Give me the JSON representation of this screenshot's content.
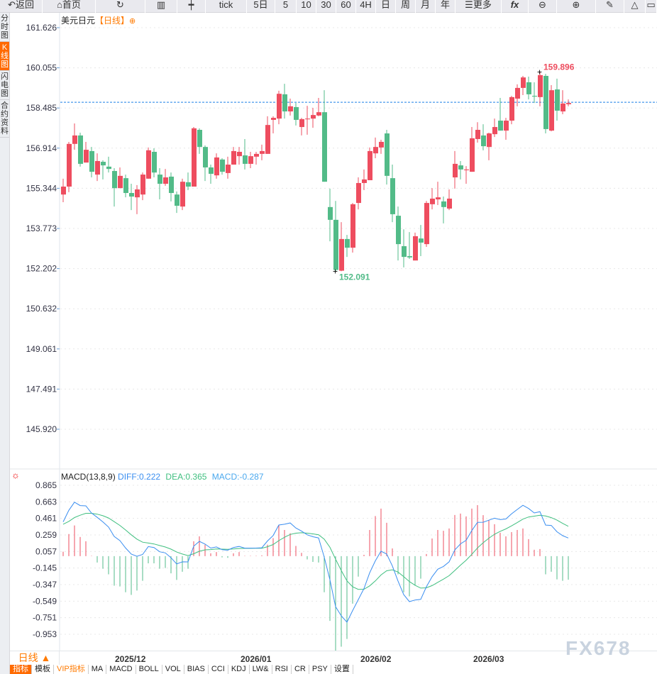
{
  "toolbar": {
    "items": [
      "返回",
      "首页",
      "",
      "",
      "",
      "tick",
      "5日",
      "5",
      "10",
      "30",
      "60",
      "4H",
      "日",
      "周",
      "月",
      "年",
      "更多",
      "fx",
      "",
      "",
      "",
      "",
      ""
    ]
  },
  "left_tabs": [
    {
      "label": "分时图",
      "active": false
    },
    {
      "label": "K线图",
      "active": true
    },
    {
      "label": "闪电图",
      "active": false
    },
    {
      "label": "合约资料",
      "active": false
    }
  ],
  "title": {
    "symbol": "美元日元",
    "period": "【日线】",
    "icon": "crosshair-circle-icon"
  },
  "macd_legend": {
    "name": "MACD(13,8,9)",
    "diff": "DIFF:0.222",
    "dea": "DEA:0.365",
    "macd": "MACD:-0.287"
  },
  "period_button": "日线 ▲",
  "bottom_tabs": [
    "指标",
    "模板",
    "VIP指标",
    "MA",
    "MACD",
    "BOLL",
    "VOL",
    "BIAS",
    "CCI",
    "KDJ",
    "LW&",
    "RSI",
    "CR",
    "PSY",
    "设置"
  ],
  "watermark": "FX678",
  "colors": {
    "up": "#ee4d5f",
    "down": "#52bb88",
    "diff": "#3a8ef0",
    "dea": "#3fbf7f",
    "accent": "#ff6a00",
    "current_line": "#1a7fe8"
  },
  "chart_data": [
    {
      "type": "candlestick",
      "y_ticks": [
        "161.626",
        "160.055",
        "158.485",
        "156.914",
        "155.344",
        "153.773",
        "152.202",
        "150.632",
        "149.061",
        "147.491",
        "145.920"
      ],
      "ylim": [
        145.92,
        161.626
      ],
      "x_ticks": [
        "2025/12",
        "2026/01",
        "2026/02",
        "2026/03"
      ],
      "current_price_line": 158.71,
      "high_label": "159.896",
      "low_label": "152.091",
      "ohlc": [
        [
          155.1,
          155.72,
          154.8,
          155.41
        ],
        [
          155.41,
          157.16,
          155.19,
          157.08
        ],
        [
          157.08,
          157.88,
          156.85,
          157.41
        ],
        [
          157.41,
          157.52,
          156.19,
          156.3
        ],
        [
          156.35,
          157.16,
          156.35,
          156.85
        ],
        [
          156.8,
          156.96,
          155.77,
          155.99
        ],
        [
          155.88,
          156.71,
          155.63,
          156.41
        ],
        [
          156.38,
          156.44,
          155.69,
          156.24
        ],
        [
          156.19,
          156.58,
          155.96,
          156.1
        ],
        [
          156.02,
          156.13,
          154.63,
          155.35
        ],
        [
          155.35,
          156.16,
          155.35,
          155.83
        ],
        [
          155.74,
          155.88,
          154.99,
          155.16
        ],
        [
          155.16,
          155.52,
          154.49,
          155.02
        ],
        [
          154.99,
          155.47,
          154.33,
          155.3
        ],
        [
          155.1,
          155.96,
          154.88,
          155.88
        ],
        [
          155.72,
          156.94,
          155.72,
          156.83
        ],
        [
          156.77,
          156.91,
          155.77,
          155.96
        ],
        [
          155.88,
          156.13,
          154.91,
          155.52
        ],
        [
          155.52,
          156.1,
          155.44,
          155.77
        ],
        [
          155.8,
          155.96,
          154.83,
          155.16
        ],
        [
          155.1,
          155.22,
          154.38,
          154.66
        ],
        [
          154.63,
          155.72,
          154.49,
          155.6
        ],
        [
          155.58,
          155.96,
          155.27,
          155.41
        ],
        [
          155.41,
          157.74,
          155.41,
          157.69
        ],
        [
          157.63,
          157.69,
          156.69,
          156.96
        ],
        [
          156.96,
          157.02,
          155.63,
          156.16
        ],
        [
          156.16,
          156.27,
          155.52,
          155.91
        ],
        [
          155.85,
          156.71,
          155.72,
          156.55
        ],
        [
          156.47,
          156.52,
          155.88,
          155.99
        ],
        [
          155.94,
          156.58,
          155.72,
          156.27
        ],
        [
          156.27,
          156.96,
          156.27,
          156.8
        ],
        [
          156.6,
          156.96,
          156.27,
          156.77
        ],
        [
          156.63,
          157.27,
          156.08,
          156.3
        ],
        [
          156.3,
          156.77,
          156.13,
          156.6
        ],
        [
          156.58,
          156.77,
          156.27,
          156.69
        ],
        [
          156.69,
          157.05,
          156.44,
          156.8
        ],
        [
          156.69,
          158.16,
          156.69,
          157.82
        ],
        [
          158.02,
          158.16,
          157.49,
          158.1
        ],
        [
          158.07,
          159.16,
          157.85,
          159.04
        ],
        [
          159.02,
          159.43,
          158.07,
          158.35
        ],
        [
          158.35,
          158.85,
          158.19,
          158.55
        ],
        [
          158.52,
          158.68,
          157.8,
          158.02
        ],
        [
          157.74,
          158.1,
          157.41,
          158.05
        ],
        [
          158.05,
          158.57,
          157.44,
          158.07
        ],
        [
          158.07,
          158.49,
          157.71,
          158.21
        ],
        [
          158.19,
          158.88,
          158.16,
          158.32
        ],
        [
          158.32,
          159.18,
          155.6,
          155.6
        ],
        [
          154.61,
          155.33,
          153.27,
          154.11
        ],
        [
          154.11,
          154.85,
          152.091,
          152.15
        ],
        [
          152.12,
          154.02,
          152.1,
          153.36
        ],
        [
          153.36,
          153.52,
          152.66,
          153.02
        ],
        [
          153.02,
          154.77,
          152.83,
          154.72
        ],
        [
          154.77,
          155.77,
          154.52,
          155.55
        ],
        [
          155.55,
          156.08,
          155.27,
          155.69
        ],
        [
          155.66,
          156.94,
          155.66,
          156.8
        ],
        [
          156.71,
          157.33,
          156.52,
          156.96
        ],
        [
          156.94,
          157.24,
          156.69,
          157.16
        ],
        [
          157.49,
          157.63,
          155.49,
          155.83
        ],
        [
          155.74,
          156.27,
          154.02,
          154.33
        ],
        [
          154.27,
          154.63,
          152.52,
          153.16
        ],
        [
          153.08,
          153.74,
          152.25,
          152.66
        ],
        [
          152.69,
          153.63,
          152.58,
          152.64
        ],
        [
          152.52,
          153.61,
          152.52,
          153.47
        ],
        [
          153.38,
          153.91,
          152.69,
          153.22
        ],
        [
          153.16,
          154.85,
          153.05,
          154.77
        ],
        [
          154.72,
          155.35,
          154.52,
          154.94
        ],
        [
          154.91,
          155.6,
          154.69,
          154.99
        ],
        [
          154.83,
          155.02,
          153.97,
          154.61
        ],
        [
          154.55,
          155.3,
          154.49,
          154.94
        ],
        [
          155.77,
          156.8,
          155.33,
          156.3
        ],
        [
          156.24,
          156.41,
          155.69,
          156.08
        ],
        [
          156.05,
          156.21,
          155.52,
          156.08
        ],
        [
          155.99,
          157.74,
          155.99,
          157.3
        ],
        [
          157.27,
          157.93,
          157.13,
          157.63
        ],
        [
          157.41,
          157.85,
          156.83,
          156.99
        ],
        [
          156.96,
          157.52,
          156.44,
          157.49
        ],
        [
          157.46,
          158.07,
          157.35,
          157.74
        ],
        [
          157.99,
          158.88,
          157.6,
          157.6
        ],
        [
          157.6,
          158.1,
          157.24,
          157.99
        ],
        [
          157.99,
          158.96,
          157.85,
          158.91
        ],
        [
          158.85,
          159.41,
          158.55,
          159.27
        ],
        [
          159.27,
          159.74,
          158.99,
          159.68
        ],
        [
          159.49,
          159.71,
          158.82,
          159.02
        ],
        [
          158.96,
          159.49,
          158.68,
          158.93
        ],
        [
          158.91,
          159.896,
          158.55,
          159.77
        ],
        [
          159.74,
          159.82,
          157.49,
          157.66
        ],
        [
          157.6,
          159.38,
          157.57,
          159.18
        ],
        [
          159.21,
          159.63,
          157.99,
          158.38
        ],
        [
          158.35,
          159.18,
          158.24,
          158.66
        ],
        [
          158.63,
          158.82,
          158.55,
          158.68
        ]
      ]
    },
    {
      "type": "macd",
      "y_ticks": [
        "0.865",
        "0.663",
        "0.461",
        "0.259",
        "0.057",
        "-0.145",
        "-0.347",
        "-0.549",
        "-0.751",
        "-0.953"
      ],
      "ylim": [
        -0.953,
        0.865
      ],
      "macd": [
        0.055,
        0.27,
        0.375,
        0.234,
        0.182,
        0.005,
        -0.078,
        -0.153,
        -0.222,
        -0.36,
        -0.37,
        -0.44,
        -0.473,
        -0.42,
        -0.3,
        -0.087,
        -0.087,
        -0.153,
        -0.145,
        -0.21,
        -0.29,
        -0.19,
        -0.153,
        0.182,
        0.242,
        0.14,
        0.035,
        0.05,
        -0.015,
        -0.02,
        0.035,
        0.05,
        0.005,
        0.005,
        0.005,
        0.01,
        0.14,
        0.22,
        0.38,
        0.32,
        0.28,
        0.125,
        0.04,
        -0.04,
        -0.07,
        -0.078,
        -0.44,
        -0.79,
        -1.16,
        -1.105,
        -1.01,
        -0.58,
        -0.25,
        0.017,
        0.32,
        0.49,
        0.58,
        0.407,
        0.095,
        -0.222,
        -0.44,
        -0.49,
        -0.36,
        -0.275,
        0.026,
        0.216,
        0.32,
        0.31,
        0.338,
        0.502,
        0.52,
        0.485,
        0.58,
        0.623,
        0.5,
        0.44,
        0.39,
        0.286,
        0.242,
        0.294,
        0.32,
        0.338,
        0.208,
        0.078,
        0.087,
        -0.222,
        -0.19,
        -0.283,
        -0.3,
        -0.287
      ],
      "dea": [
        0.39,
        0.424,
        0.471,
        0.5,
        0.523,
        0.523,
        0.513,
        0.494,
        0.466,
        0.421,
        0.375,
        0.32,
        0.261,
        0.208,
        0.171,
        0.16,
        0.149,
        0.13,
        0.112,
        0.086,
        0.05,
        0.026,
        0.007,
        0.03,
        0.06,
        0.077,
        0.081,
        0.088,
        0.086,
        0.083,
        0.088,
        0.094,
        0.095,
        0.095,
        0.096,
        0.097,
        0.115,
        0.142,
        0.19,
        0.23,
        0.265,
        0.281,
        0.286,
        0.281,
        0.272,
        0.262,
        0.207,
        0.108,
        -0.037,
        -0.175,
        -0.301,
        -0.374,
        -0.405,
        -0.403,
        -0.363,
        -0.302,
        -0.229,
        -0.178,
        -0.166,
        -0.194,
        -0.249,
        -0.31,
        -0.355,
        -0.389,
        -0.386,
        -0.359,
        -0.319,
        -0.28,
        -0.238,
        -0.175,
        -0.11,
        -0.049,
        0.023,
        0.101,
        0.164,
        0.219,
        0.268,
        0.303,
        0.333,
        0.37,
        0.41,
        0.452,
        0.478,
        0.488,
        0.499,
        0.49,
        0.47,
        0.44,
        0.4,
        0.365
      ],
      "diff": [
        0.418,
        0.559,
        0.659,
        0.617,
        0.614,
        0.526,
        0.474,
        0.418,
        0.355,
        0.241,
        0.19,
        0.1,
        0.025,
        -0.002,
        0.021,
        0.117,
        0.106,
        0.054,
        0.04,
        -0.019,
        -0.095,
        -0.069,
        -0.07,
        0.121,
        0.181,
        0.147,
        0.099,
        0.113,
        0.079,
        0.073,
        0.106,
        0.119,
        0.098,
        0.098,
        0.099,
        0.102,
        0.185,
        0.252,
        0.38,
        0.39,
        0.405,
        0.344,
        0.306,
        0.261,
        0.237,
        0.223,
        -0.013,
        -0.287,
        -0.617,
        -0.728,
        -0.806,
        -0.664,
        -0.53,
        -0.395,
        -0.203,
        -0.057,
        0.061,
        0.026,
        -0.119,
        -0.305,
        -0.469,
        -0.555,
        -0.535,
        -0.527,
        -0.373,
        -0.251,
        -0.159,
        -0.125,
        -0.069,
        0.076,
        0.15,
        0.194,
        0.313,
        0.413,
        0.414,
        0.439,
        0.463,
        0.446,
        0.454,
        0.517,
        0.57,
        0.621,
        0.582,
        0.527,
        0.543,
        0.379,
        0.375,
        0.298,
        0.25,
        0.222
      ]
    }
  ]
}
